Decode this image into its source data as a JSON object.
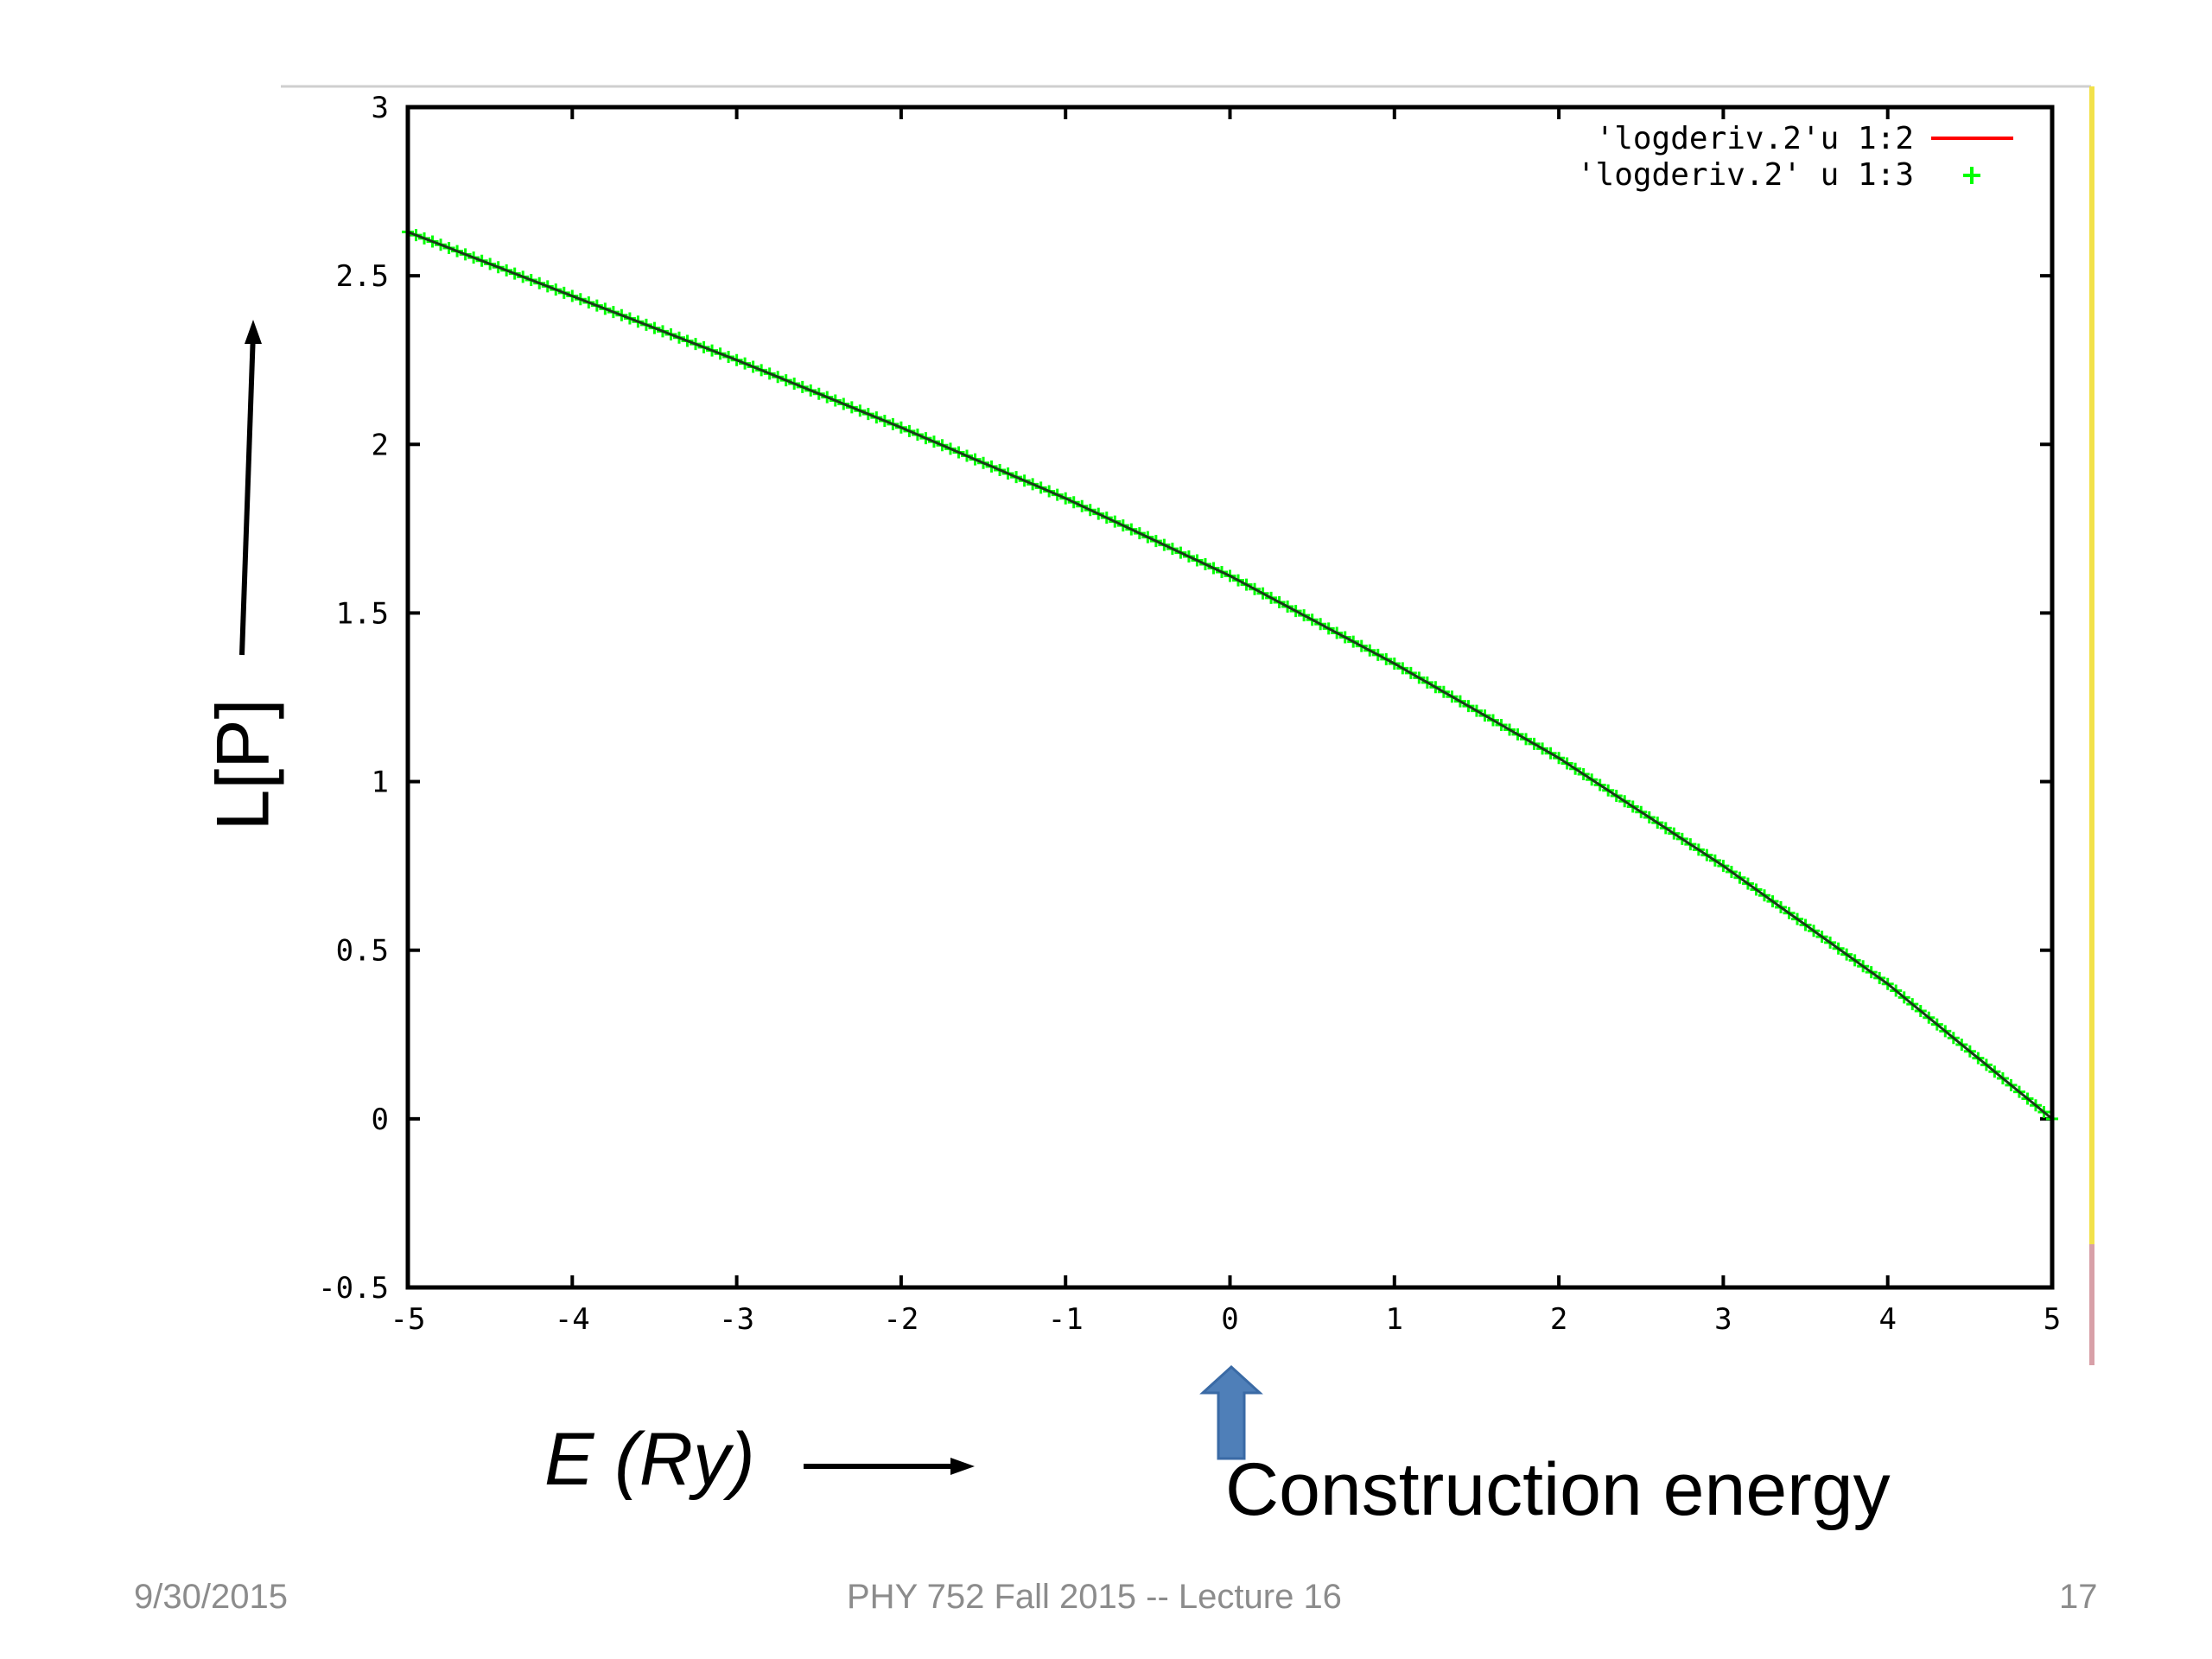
{
  "chart_data": {
    "type": "line",
    "title": "",
    "xlabel": "E (Ry)",
    "ylabel": "L[P]",
    "xlim": [
      -5,
      5
    ],
    "ylim": [
      -0.5,
      3
    ],
    "x_ticks": [
      "-5",
      "-4",
      "-3",
      "-2",
      "-1",
      "0",
      "1",
      "2",
      "3",
      "4",
      "5"
    ],
    "y_ticks": [
      "-0.5",
      "0",
      "0.5",
      "1",
      "1.5",
      "2",
      "2.5",
      "3"
    ],
    "legend_position": "top-right",
    "series": [
      {
        "name": "'logderiv.2'u 1:2",
        "style": "line",
        "color": "#ff0000",
        "x": [
          -5,
          -4,
          -3,
          -2,
          -1,
          0,
          1,
          2,
          3,
          4,
          5
        ],
        "values": [
          2.63,
          2.44,
          2.25,
          2.05,
          1.84,
          1.61,
          1.35,
          1.07,
          0.75,
          0.4,
          0.0
        ]
      },
      {
        "name": "'logderiv.2' u 1:3",
        "style": "points",
        "color": "#00ff00",
        "x": [
          -5,
          -4,
          -3,
          -2,
          -1,
          0,
          1,
          2,
          3,
          4,
          5
        ],
        "values": [
          2.63,
          2.44,
          2.25,
          2.05,
          1.84,
          1.61,
          1.35,
          1.07,
          0.75,
          0.4,
          0.0
        ]
      }
    ]
  },
  "annotation": {
    "text": "Construction energy",
    "arrow_color": "#4f7fb8"
  },
  "footer": {
    "date": "9/30/2015",
    "title": "PHY 752  Fall 2015 -- Lecture 16",
    "page": "17"
  }
}
